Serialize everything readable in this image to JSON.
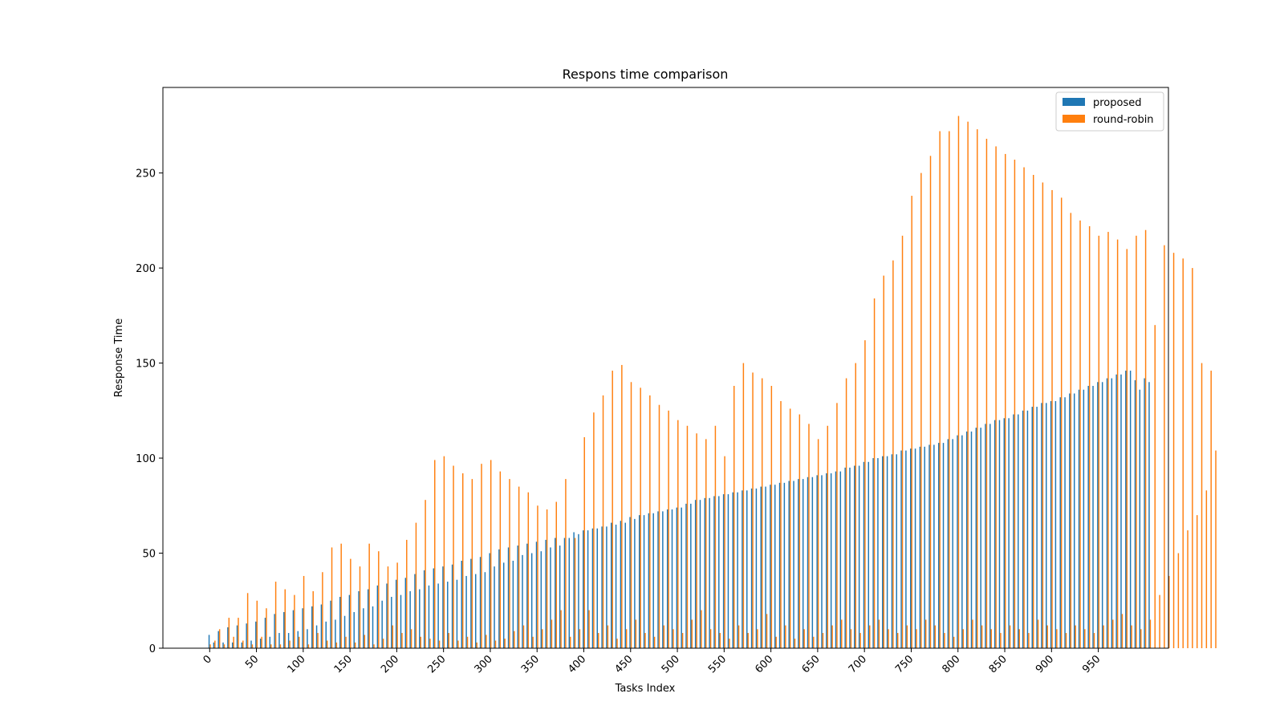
{
  "chart_data": {
    "type": "bar",
    "title": "Respons time comparison",
    "xlabel": "Tasks Index",
    "ylabel": "Response Time",
    "xlim": [
      -50,
      1025
    ],
    "ylim": [
      0,
      295
    ],
    "x_ticks": [
      0,
      50,
      100,
      150,
      200,
      250,
      300,
      350,
      400,
      450,
      500,
      550,
      600,
      650,
      700,
      750,
      800,
      850,
      900,
      950
    ],
    "y_ticks": [
      0,
      50,
      100,
      150,
      200,
      250
    ],
    "grid": false,
    "legend_position": "top-right",
    "bar_group_spacing": 5,
    "series": [
      {
        "name": "proposed",
        "color": "#1f77b4",
        "x_start": 0,
        "x_step": 5,
        "values": [
          7,
          3,
          9,
          3,
          11,
          3,
          12,
          3,
          13,
          4,
          14,
          5,
          16,
          6,
          18,
          8,
          19,
          8,
          20,
          9,
          21,
          10,
          22,
          12,
          23,
          14,
          25,
          15,
          27,
          17,
          28,
          19,
          30,
          21,
          31,
          22,
          33,
          25,
          34,
          27,
          36,
          28,
          37,
          30,
          39,
          31,
          41,
          33,
          42,
          34,
          43,
          35,
          44,
          36,
          46,
          38,
          47,
          39,
          48,
          40,
          50,
          43,
          52,
          45,
          53,
          46,
          54,
          49,
          55,
          50,
          56,
          51,
          57,
          53,
          58,
          54,
          58,
          58,
          61,
          60,
          62,
          62,
          63,
          63,
          64,
          64,
          66,
          65,
          67,
          66,
          69,
          68,
          70,
          70,
          71,
          71,
          72,
          72,
          73,
          73,
          74,
          74,
          76,
          76,
          78,
          78,
          79,
          79,
          80,
          80,
          81,
          81,
          82,
          82,
          83,
          83,
          84,
          84,
          85,
          85,
          86,
          86,
          87,
          87,
          88,
          88,
          89,
          89,
          90,
          90,
          91,
          91,
          92,
          92,
          93,
          93,
          95,
          95,
          96,
          96,
          98,
          98,
          100,
          100,
          101,
          101,
          102,
          102,
          104,
          104,
          105,
          105,
          106,
          106,
          107,
          107,
          108,
          108,
          110,
          110,
          112,
          112,
          114,
          114,
          116,
          116,
          118,
          118,
          120,
          120,
          121,
          121,
          123,
          123,
          125,
          125,
          127,
          127,
          129,
          129,
          130,
          130,
          132,
          132,
          134,
          134,
          136,
          136,
          138,
          138,
          140,
          140,
          142,
          142,
          144,
          144,
          146,
          146,
          141,
          136,
          142,
          140
        ]
      },
      {
        "name": "round-robin",
        "color": "#ff7f0e",
        "x_start": 0,
        "x_step": 5,
        "values": [
          2,
          4,
          10,
          2,
          16,
          6,
          16,
          4,
          29,
          2,
          25,
          6,
          21,
          2,
          35,
          2,
          31,
          4,
          28,
          6,
          38,
          2,
          30,
          8,
          40,
          4,
          53,
          3,
          55,
          6,
          47,
          3,
          43,
          7,
          55,
          2,
          51,
          5,
          43,
          12,
          45,
          8,
          57,
          10,
          66,
          6,
          78,
          5,
          99,
          4,
          101,
          8,
          96,
          4,
          92,
          6,
          89,
          3,
          97,
          7,
          99,
          4,
          93,
          5,
          89,
          9,
          85,
          12,
          82,
          6,
          75,
          10,
          73,
          15,
          77,
          20,
          89,
          6,
          58,
          10,
          111,
          20,
          124,
          8,
          133,
          12,
          146,
          5,
          149,
          10,
          140,
          15,
          137,
          8,
          133,
          6,
          128,
          12,
          125,
          10,
          120,
          8,
          117,
          15,
          113,
          20,
          110,
          10,
          117,
          8,
          101,
          5,
          138,
          12,
          150,
          8,
          145,
          10,
          142,
          18,
          138,
          6,
          130,
          12,
          126,
          5,
          123,
          10,
          118,
          6,
          110,
          8,
          117,
          12,
          129,
          15,
          142,
          10,
          150,
          8,
          162,
          12,
          184,
          15,
          196,
          10,
          204,
          8,
          217,
          12,
          238,
          10,
          250,
          15,
          259,
          12,
          272,
          8,
          272,
          6,
          280,
          10,
          277,
          15,
          273,
          12,
          268,
          10,
          264,
          8,
          260,
          12,
          257,
          10,
          253,
          8,
          249,
          15,
          245,
          12,
          241,
          10,
          237,
          8,
          229,
          12,
          225,
          10,
          222,
          8,
          217,
          12,
          219,
          15,
          215,
          18,
          210,
          12,
          217,
          10,
          220,
          15,
          170,
          28,
          212,
          38,
          208,
          50,
          205,
          62,
          200,
          70,
          150,
          83,
          146,
          104
        ]
      }
    ]
  }
}
